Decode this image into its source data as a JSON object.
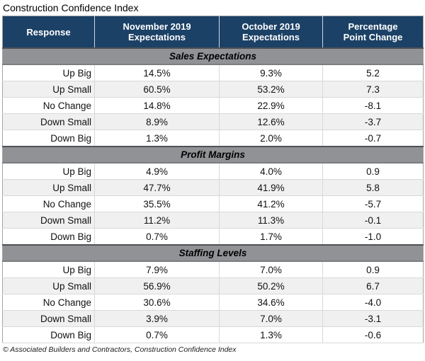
{
  "title": "Construction Confidence Index",
  "footer": "© Associated Builders and Contractors, Construction Confidence Index",
  "colors": {
    "header_bg": "#1C4166",
    "header_text": "#FFFFFF",
    "header_divider": "#CBD8E4",
    "section_bg": "#909295",
    "row_alt_bg": "#F0F0F1",
    "grid_line": "#D9D9D9",
    "outer_border": "#A5A5A5"
  },
  "chart_data": {
    "type": "table",
    "title": "Construction Confidence Index",
    "columns": [
      "Response",
      "November 2019\nExpectations",
      "October 2019\nExpectations",
      "Percentage\nPoint Change"
    ],
    "sections": [
      {
        "header": "Sales Expectations",
        "rows": [
          {
            "response": "Up Big",
            "november": "14.5%",
            "october": "9.3%",
            "change": "5.2"
          },
          {
            "response": "Up Small",
            "november": "60.5%",
            "october": "53.2%",
            "change": "7.3"
          },
          {
            "response": "No Change",
            "november": "14.8%",
            "october": "22.9%",
            "change": "-8.1"
          },
          {
            "response": "Down Small",
            "november": "8.9%",
            "october": "12.6%",
            "change": "-3.7"
          },
          {
            "response": "Down Big",
            "november": "1.3%",
            "october": "2.0%",
            "change": "-0.7"
          }
        ]
      },
      {
        "header": "Profit Margins",
        "rows": [
          {
            "response": "Up Big",
            "november": "4.9%",
            "october": "4.0%",
            "change": "0.9"
          },
          {
            "response": "Up Small",
            "november": "47.7%",
            "october": "41.9%",
            "change": "5.8"
          },
          {
            "response": "No Change",
            "november": "35.5%",
            "october": "41.2%",
            "change": "-5.7"
          },
          {
            "response": "Down Small",
            "november": "11.2%",
            "october": "11.3%",
            "change": "-0.1"
          },
          {
            "response": "Down Big",
            "november": "0.7%",
            "october": "1.7%",
            "change": "-1.0"
          }
        ]
      },
      {
        "header": "Staffing Levels",
        "rows": [
          {
            "response": "Up Big",
            "november": "7.9%",
            "october": "7.0%",
            "change": "0.9"
          },
          {
            "response": "Up Small",
            "november": "56.9%",
            "october": "50.2%",
            "change": "6.7"
          },
          {
            "response": "No Change",
            "november": "30.6%",
            "october": "34.6%",
            "change": "-4.0"
          },
          {
            "response": "Down Small",
            "november": "3.9%",
            "october": "7.0%",
            "change": "-3.1"
          },
          {
            "response": "Down Big",
            "november": "0.7%",
            "october": "1.3%",
            "change": "-0.6"
          }
        ]
      }
    ],
    "source": "© Associated Builders and Contractors, Construction Confidence Index"
  }
}
